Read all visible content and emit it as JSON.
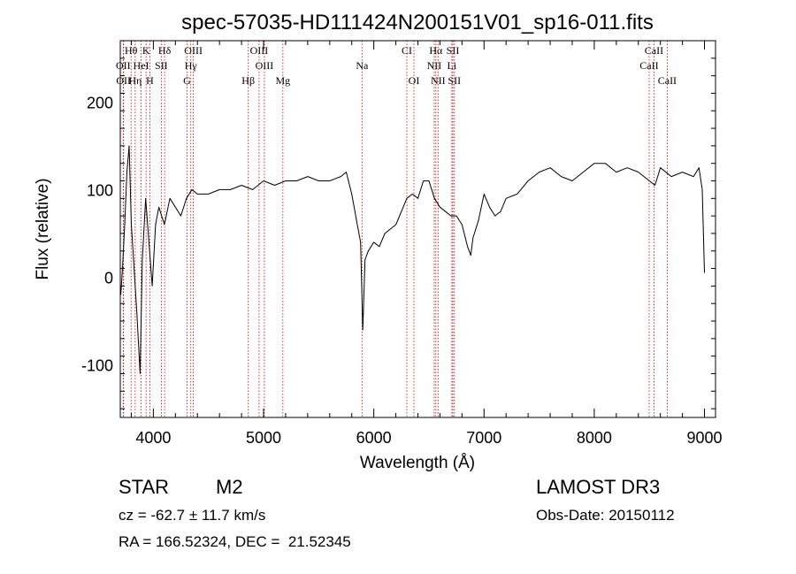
{
  "chart_data": {
    "type": "line",
    "title": "spec-57035-HD111424N200151V01_sp16-011.fits",
    "xlabel": "Wavelength (Å)",
    "ylabel": "Flux (relative)",
    "xlim": [
      3700,
      9100
    ],
    "ylim": [
      -160,
      270
    ],
    "x_ticks": [
      4000,
      5000,
      6000,
      7000,
      8000,
      9000
    ],
    "y_ticks": [
      -100,
      0,
      100,
      200
    ],
    "grid": false,
    "line_color": "#000000",
    "marker_color": "#cc0000",
    "series": [
      {
        "x": [
          3705,
          3720,
          3740,
          3760,
          3780,
          3800,
          3820,
          3850,
          3880,
          3900,
          3930,
          3960,
          3990,
          4020,
          4050,
          4100,
          4150,
          4200,
          4250,
          4300,
          4350,
          4400,
          4500,
          4600,
          4700,
          4800,
          4900,
          5000,
          5100,
          5200,
          5300,
          5400,
          5500,
          5600,
          5700,
          5750,
          5800,
          5850,
          5880,
          5900,
          5920,
          5950,
          6000,
          6050,
          6100,
          6150,
          6200,
          6250,
          6300,
          6350,
          6400,
          6450,
          6500,
          6550,
          6600,
          6650,
          6700,
          6750,
          6800,
          6850,
          6880,
          6900,
          6950,
          7000,
          7050,
          7100,
          7150,
          7200,
          7300,
          7400,
          7500,
          7600,
          7700,
          7800,
          7900,
          8000,
          8100,
          8200,
          8300,
          8400,
          8500,
          8550,
          8600,
          8700,
          8800,
          8900,
          8950,
          8980,
          9000
        ],
        "y": [
          -20,
          10,
          60,
          120,
          150,
          60,
          20,
          -40,
          -110,
          20,
          90,
          40,
          -10,
          60,
          80,
          60,
          90,
          80,
          70,
          90,
          100,
          95,
          95,
          100,
          100,
          105,
          100,
          110,
          105,
          110,
          110,
          115,
          110,
          110,
          115,
          120,
          95,
          60,
          40,
          -60,
          20,
          30,
          40,
          35,
          50,
          55,
          60,
          75,
          90,
          95,
          90,
          110,
          110,
          90,
          80,
          75,
          70,
          70,
          60,
          35,
          25,
          45,
          65,
          95,
          80,
          70,
          75,
          90,
          95,
          110,
          120,
          125,
          115,
          110,
          120,
          130,
          130,
          120,
          125,
          120,
          110,
          105,
          125,
          115,
          120,
          115,
          125,
          100,
          5
        ]
      }
    ],
    "lines": [
      {
        "label": "Hθ",
        "x": 3798,
        "row": 1
      },
      {
        "label": "K",
        "x": 3934,
        "row": 1
      },
      {
        "label": "Hδ",
        "x": 4102,
        "row": 1
      },
      {
        "label": "OIII",
        "x": 4363,
        "row": 1
      },
      {
        "label": "OIII",
        "x": 4959,
        "row": 1
      },
      {
        "label": "CI",
        "x": 6300,
        "row": 1
      },
      {
        "label": "Hα",
        "x": 6563,
        "row": 1
      },
      {
        "label": "SII",
        "x": 6717,
        "row": 1
      },
      {
        "label": "CaII",
        "x": 8542,
        "row": 1
      },
      {
        "label": "OII",
        "x": 3727,
        "row": 2
      },
      {
        "label": "HeI",
        "x": 3889,
        "row": 2
      },
      {
        "label": "SII",
        "x": 4072,
        "row": 2
      },
      {
        "label": "Hγ",
        "x": 4340,
        "row": 2
      },
      {
        "label": "OIII",
        "x": 5007,
        "row": 2
      },
      {
        "label": "Na",
        "x": 5893,
        "row": 2
      },
      {
        "label": "NII",
        "x": 6548,
        "row": 2
      },
      {
        "label": "Li",
        "x": 6708,
        "row": 2
      },
      {
        "label": "CaII",
        "x": 8498,
        "row": 2
      },
      {
        "label": "OII",
        "x": 3730,
        "row": 3
      },
      {
        "label": "Hη",
        "x": 3835,
        "row": 3
      },
      {
        "label": "H",
        "x": 3968,
        "row": 3
      },
      {
        "label": "G",
        "x": 4305,
        "row": 3
      },
      {
        "label": "Hβ",
        "x": 4861,
        "row": 3
      },
      {
        "label": "Mg",
        "x": 5175,
        "row": 3
      },
      {
        "label": "OI",
        "x": 6364,
        "row": 3
      },
      {
        "label": "NII",
        "x": 6583,
        "row": 3
      },
      {
        "label": "SII",
        "x": 6731,
        "row": 3
      },
      {
        "label": "CaII",
        "x": 8662,
        "row": 3
      }
    ]
  },
  "info": {
    "object_type": "STAR",
    "subclass": "M2",
    "survey": "LAMOST DR3",
    "redshift": "cz = -62.7 ± 11.7 km/s",
    "obs_date": "Obs-Date: 20150112",
    "coords": "RA = 166.52324, DEC =  21.52345"
  }
}
